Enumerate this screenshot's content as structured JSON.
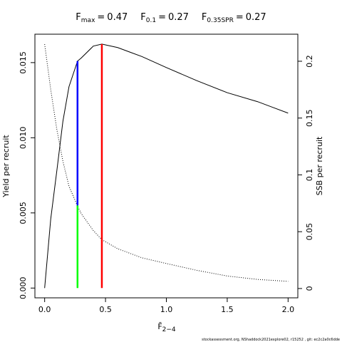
{
  "chart_data": {
    "type": "line",
    "title_parts": [
      {
        "symbol": "F",
        "subscript": "max",
        "operator": "=",
        "value": 0.47
      },
      {
        "symbol": "F",
        "subscript": "0.1",
        "operator": "=",
        "value": 0.27
      },
      {
        "symbol": "F",
        "subscript": "0.35SPR",
        "operator": "=",
        "value": 0.27
      }
    ],
    "x_label": {
      "symbol": "F̄",
      "subscript": "2−4"
    },
    "y_label": "Yield per recruit",
    "y2_label": "SSB per recruit",
    "footer": "stockassessment.org, NShaddock2021explore02, r15252 , git: ec2c2a0c6dde",
    "x": [
      0,
      0.05,
      0.1,
      0.15,
      0.2,
      0.27,
      0.3,
      0.4,
      0.47,
      0.6,
      0.7,
      0.8,
      1.0,
      1.25,
      1.5,
      1.75,
      2.0
    ],
    "series": [
      {
        "name": "Yield per recruit",
        "color": "#000000",
        "style": "solid",
        "values": [
          0,
          0.0046,
          0.0078,
          0.0111,
          0.0134,
          0.0151,
          0.0153,
          0.0161,
          0.01623,
          0.016,
          0.0157,
          0.0154,
          0.01467,
          0.0138,
          0.013,
          0.0124,
          0.01164
        ]
      },
      {
        "name": "SSB per recruit",
        "color": "#000000",
        "style": "dotted",
        "axis": "y2",
        "values": [
          0.215,
          0.175,
          0.14,
          0.112,
          0.09,
          0.0727,
          0.066,
          0.051,
          0.043,
          0.035,
          0.031,
          0.027,
          0.022,
          0.016,
          0.011,
          0.008,
          0.0063
        ]
      }
    ],
    "reference_lines": [
      {
        "x": 0.27,
        "y_range": [
          0,
          0.0055
        ],
        "color": "#00ff00"
      },
      {
        "x": 0.27,
        "y_range": [
          0.0055,
          0.0151
        ],
        "color": "#0000ff"
      },
      {
        "x": 0.47,
        "y_range": [
          0,
          0.01623
        ],
        "color": "#ff0000"
      }
    ],
    "xlim": [
      -0.08,
      2.08
    ],
    "xticks": [
      {
        "value": 0,
        "label": "0.0"
      },
      0.5,
      {
        "value": 1,
        "label": "1.0"
      },
      1.5,
      {
        "value": 2,
        "label": "2.0"
      }
    ],
    "ylim": [
      -0.00065,
      0.01689
    ],
    "yticks": [
      {
        "value": 0,
        "label": "0.000"
      },
      0.005,
      {
        "value": 0.01,
        "label": "0.010"
      },
      0.015
    ],
    "y2lim": [
      -0.0082,
      0.2238
    ],
    "y2ticks": [
      0,
      0.05,
      0.1,
      0.15,
      0.2
    ]
  }
}
